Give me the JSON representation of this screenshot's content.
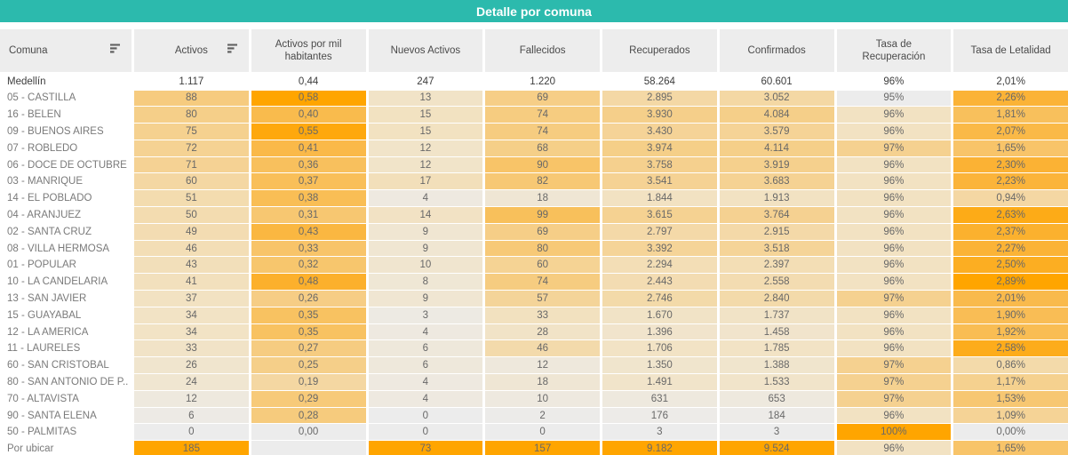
{
  "chart_data": {
    "type": "table",
    "title": "Detalle por comuna",
    "columns": [
      {
        "label": "Comuna",
        "sort_icon": true
      },
      {
        "label": "Activos",
        "sort_icon": true
      },
      {
        "label": "Activos por mil habitantes",
        "sort_icon": false
      },
      {
        "label": "Nuevos Activos",
        "sort_icon": false
      },
      {
        "label": "Fallecidos",
        "sort_icon": false
      },
      {
        "label": "Recuperados",
        "sort_icon": false
      },
      {
        "label": "Confirmados",
        "sort_icon": false
      },
      {
        "label": "Tasa de Recuperación",
        "sort_icon": false
      },
      {
        "label": "Tasa de Letalidad",
        "sort_icon": false
      }
    ],
    "total_row": {
      "label": "Medellín",
      "values": [
        "1.117",
        "0,44",
        "247",
        "1.220",
        "58.264",
        "60.601",
        "96%",
        "2,01%"
      ]
    },
    "rows": [
      {
        "label": "05 - CASTILLA",
        "values": [
          "88",
          "0,58",
          "13",
          "69",
          "2.895",
          "3.052",
          "95%",
          "2,26%"
        ]
      },
      {
        "label": "16 - BELEN",
        "values": [
          "80",
          "0,40",
          "15",
          "74",
          "3.930",
          "4.084",
          "96%",
          "1,81%"
        ]
      },
      {
        "label": "09 - BUENOS AIRES",
        "values": [
          "75",
          "0,55",
          "15",
          "74",
          "3.430",
          "3.579",
          "96%",
          "2,07%"
        ]
      },
      {
        "label": "07 - ROBLEDO",
        "values": [
          "72",
          "0,41",
          "12",
          "68",
          "3.974",
          "4.114",
          "97%",
          "1,65%"
        ]
      },
      {
        "label": "06 - DOCE DE OCTUBRE",
        "values": [
          "71",
          "0,36",
          "12",
          "90",
          "3.758",
          "3.919",
          "96%",
          "2,30%"
        ]
      },
      {
        "label": "03 - MANRIQUE",
        "values": [
          "60",
          "0,37",
          "17",
          "82",
          "3.541",
          "3.683",
          "96%",
          "2,23%"
        ]
      },
      {
        "label": "14 - EL POBLADO",
        "values": [
          "51",
          "0,38",
          "4",
          "18",
          "1.844",
          "1.913",
          "96%",
          "0,94%"
        ]
      },
      {
        "label": "04 - ARANJUEZ",
        "values": [
          "50",
          "0,31",
          "14",
          "99",
          "3.615",
          "3.764",
          "96%",
          "2,63%"
        ]
      },
      {
        "label": "02 - SANTA CRUZ",
        "values": [
          "49",
          "0,43",
          "9",
          "69",
          "2.797",
          "2.915",
          "96%",
          "2,37%"
        ]
      },
      {
        "label": "08 - VILLA HERMOSA",
        "values": [
          "46",
          "0,33",
          "9",
          "80",
          "3.392",
          "3.518",
          "96%",
          "2,27%"
        ]
      },
      {
        "label": "01 - POPULAR",
        "values": [
          "43",
          "0,32",
          "10",
          "60",
          "2.294",
          "2.397",
          "96%",
          "2,50%"
        ]
      },
      {
        "label": "10 - LA CANDELARIA",
        "values": [
          "41",
          "0,48",
          "8",
          "74",
          "2.443",
          "2.558",
          "96%",
          "2,89%"
        ]
      },
      {
        "label": "13 - SAN JAVIER",
        "values": [
          "37",
          "0,26",
          "9",
          "57",
          "2.746",
          "2.840",
          "97%",
          "2,01%"
        ]
      },
      {
        "label": "15 - GUAYABAL",
        "values": [
          "34",
          "0,35",
          "3",
          "33",
          "1.670",
          "1.737",
          "96%",
          "1,90%"
        ]
      },
      {
        "label": "12 - LA AMERICA",
        "values": [
          "34",
          "0,35",
          "4",
          "28",
          "1.396",
          "1.458",
          "96%",
          "1,92%"
        ]
      },
      {
        "label": "11 - LAURELES",
        "values": [
          "33",
          "0,27",
          "6",
          "46",
          "1.706",
          "1.785",
          "96%",
          "2,58%"
        ]
      },
      {
        "label": "60 - SAN CRISTOBAL",
        "values": [
          "26",
          "0,25",
          "6",
          "12",
          "1.350",
          "1.388",
          "97%",
          "0,86%"
        ]
      },
      {
        "label": "80 - SAN ANTONIO DE P..",
        "values": [
          "24",
          "0,19",
          "4",
          "18",
          "1.491",
          "1.533",
          "97%",
          "1,17%"
        ]
      },
      {
        "label": "70 - ALTAVISTA",
        "values": [
          "12",
          "0,29",
          "4",
          "10",
          "631",
          "653",
          "97%",
          "1,53%"
        ]
      },
      {
        "label": "90 - SANTA ELENA",
        "values": [
          "6",
          "0,28",
          "0",
          "2",
          "176",
          "184",
          "96%",
          "1,09%"
        ]
      },
      {
        "label": "50 - PALMITAS",
        "values": [
          "0",
          "0,00",
          "0",
          "0",
          "3",
          "3",
          "100%",
          "0,00%"
        ]
      },
      {
        "label": "Por ubicar",
        "values": [
          "185",
          "",
          "73",
          "157",
          "9.182",
          "9.524",
          "96%",
          "1,65%"
        ]
      }
    ],
    "layout_hints": {
      "heatmap_columns": "all value columns shaded per-column from min to max",
      "total_row_unshaded": true
    }
  },
  "colors": {
    "title_bar": "#2CBAAD",
    "title_text": "#FFFFFF",
    "header_bg": "#EDEDED",
    "header_text": "#4A4A4A",
    "row_label_text": "#7A7A7A",
    "cell_text": "#686868",
    "total_text": "#3C3C3C",
    "heat_stops": [
      "#ECECEC",
      "#F2E2C2",
      "#F5D190",
      "#F8C262",
      "#FBB233",
      "#FFA500"
    ]
  }
}
